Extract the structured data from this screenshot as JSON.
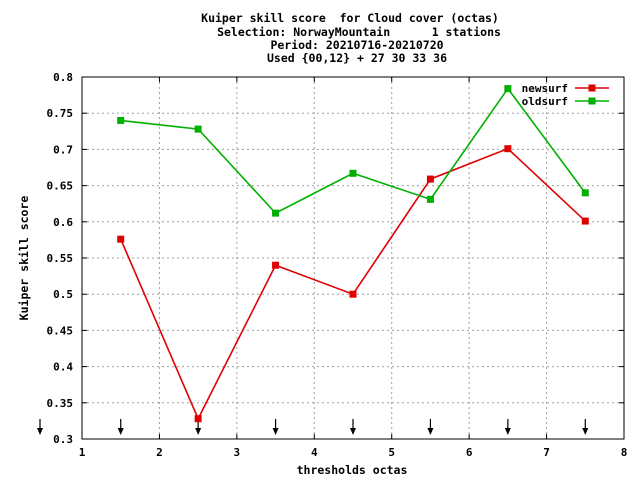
{
  "chart_data": {
    "type": "line",
    "title_lines": [
      "Kuiper skill score  for Cloud cover (octas)",
      "Selection: NorwayMountain      1 stations",
      "Period: 20210716-20210720",
      "Used {00,12} + 27 30 33 36"
    ],
    "xlabel": "thresholds octas",
    "ylabel": "Kuiper skill score",
    "xlim": [
      1,
      8
    ],
    "ylim": [
      0.3,
      0.8
    ],
    "x_ticks": [
      "1",
      "2",
      "3",
      "4",
      "5",
      "6",
      "7",
      "8"
    ],
    "y_ticks": [
      "0.3",
      "0.35",
      "0.4",
      "0.45",
      "0.5",
      "0.55",
      "0.6",
      "0.65",
      "0.7",
      "0.75",
      "0.8"
    ],
    "grid": true,
    "legend_position": "top-right",
    "arrow_markers_x": [
      1,
      1.5,
      2.5,
      3.5,
      4.5,
      5.5,
      6.5,
      7.5
    ],
    "x": [
      1.5,
      2.5,
      3.5,
      4.5,
      5.5,
      6.5,
      7.5
    ],
    "series": [
      {
        "name": "newsurf",
        "color": "#e00000",
        "values": [
          0.576,
          0.328,
          0.54,
          0.5,
          0.659,
          0.701,
          0.601
        ]
      },
      {
        "name": "oldsurf",
        "color": "#00b000",
        "values": [
          0.74,
          0.728,
          0.612,
          0.667,
          0.631,
          0.784,
          0.64
        ]
      }
    ]
  }
}
